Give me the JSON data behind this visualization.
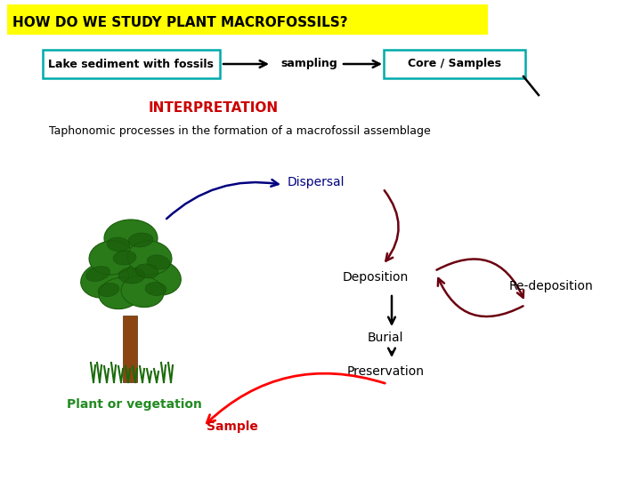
{
  "title": "HOW DO WE STUDY PLANT MACROFOSSILS?",
  "title_bg": "#ffff00",
  "title_color": "#000000",
  "title_fontsize": 11,
  "box1_text": "Lake sediment with fossils",
  "box2_text": "Core / Samples",
  "sampling_text": "sampling",
  "box_edge_color": "#00aaaa",
  "interpretation_text": "INTERPRETATION",
  "interpretation_color": "#cc0000",
  "taphonomic_text": "Taphonomic processes in the formation of a macrofossil assemblage",
  "dispersal_text": "Dispersal",
  "dispersal_color": "#000080",
  "deposition_text": "Deposition",
  "redeposition_text": "Re-deposition",
  "burial_text": "Burial",
  "preservation_text": "Preservation",
  "sample_text": "Sample",
  "sample_color": "#cc0000",
  "plant_text": "Plant or vegetation",
  "plant_color": "#228b22",
  "dark_red": "#6b0010",
  "fig_bg": "#ffffff",
  "leaf_green": "#2a7a1a",
  "leaf_dark": "#1a5c0a",
  "trunk_color": "#8b4513",
  "grass_color": "#1a6a0a"
}
